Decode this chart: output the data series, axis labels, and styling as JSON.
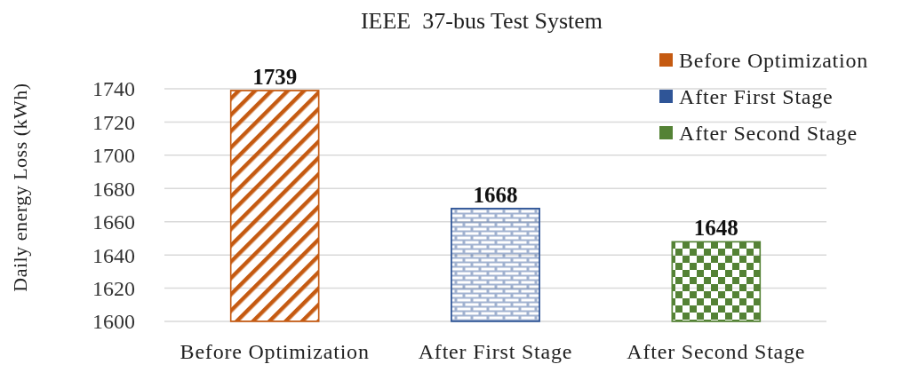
{
  "chart_data": {
    "type": "bar",
    "title": "IEEE  37-bus Test System",
    "ylabel": "Daily energy Loss (kWh)",
    "categories": [
      "Before Optimization",
      "After First Stage",
      "After Second Stage"
    ],
    "series": [
      {
        "name": "Before Optimization",
        "color": "#c55a11",
        "values": [
          1739,
          null,
          null
        ]
      },
      {
        "name": "After First Stage",
        "color": "#2f5597",
        "values": [
          null,
          1668,
          null
        ]
      },
      {
        "name": "After Second Stage",
        "color": "#548235",
        "values": [
          null,
          null,
          1648
        ]
      }
    ],
    "ylim": [
      1600,
      1740
    ],
    "yticks": [
      1600,
      1620,
      1640,
      1660,
      1680,
      1700,
      1720,
      1740
    ],
    "grid": "y",
    "legend": "top right",
    "data_labels": true
  }
}
